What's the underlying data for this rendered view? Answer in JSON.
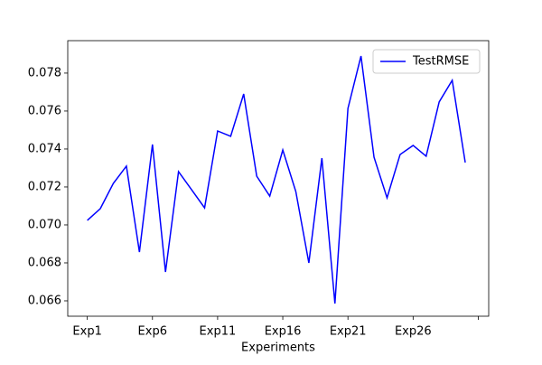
{
  "chart_data": {
    "type": "line",
    "xlabel": "Experiments",
    "x": [
      0,
      1,
      2,
      3,
      4,
      5,
      6,
      7,
      8,
      9,
      10,
      11,
      12,
      13,
      14,
      15,
      16,
      17,
      18,
      19,
      20,
      21,
      22,
      23,
      24,
      25,
      26,
      27,
      28,
      29
    ],
    "series": [
      {
        "name": "TestRMSE",
        "color": "#0000ff",
        "values": [
          0.07024,
          0.07086,
          0.07219,
          0.0731,
          0.06857,
          0.07424,
          0.06752,
          0.07281,
          0.07186,
          0.0709,
          0.07495,
          0.07467,
          0.0769,
          0.07257,
          0.07152,
          0.07395,
          0.07176,
          0.068,
          0.07352,
          0.06586,
          0.07614,
          0.0789,
          0.07357,
          0.07143,
          0.07371,
          0.07419,
          0.07362,
          0.07648,
          0.07762,
          0.07329
        ]
      }
    ],
    "xlim": [
      -1.5,
      30.8
    ],
    "xticks": [
      {
        "value": 0,
        "label": "Exp1"
      },
      {
        "value": 5,
        "label": "Exp6"
      },
      {
        "value": 10,
        "label": "Exp11"
      },
      {
        "value": 15,
        "label": "Exp16"
      },
      {
        "value": 20,
        "label": "Exp21"
      },
      {
        "value": 25,
        "label": "Exp26"
      },
      {
        "value": 30,
        "label": null
      }
    ],
    "ylim": [
      0.06519,
      0.07971
    ],
    "yticks": [
      0.066,
      0.068,
      {
        "value": 0.07,
        "label": "0.070"
      },
      0.072,
      0.074,
      0.076,
      0.078
    ],
    "legend": "upper right"
  }
}
